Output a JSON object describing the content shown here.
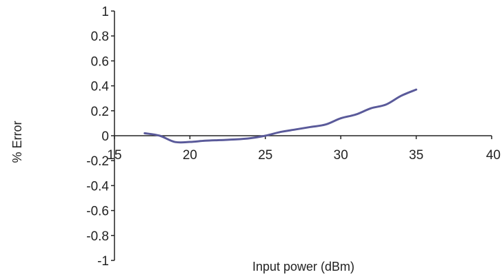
{
  "chart_data": {
    "type": "line",
    "title": "",
    "xlabel": "Input power (dBm)",
    "ylabel": "% Error",
    "xlim": [
      15,
      40
    ],
    "ylim": [
      -1,
      1
    ],
    "x_ticks": [
      15,
      20,
      25,
      30,
      35,
      40
    ],
    "x_tick_labels": [
      "15",
      "20",
      "25",
      "30",
      "35",
      "40"
    ],
    "y_ticks": [
      1,
      0.8,
      0.6,
      0.4,
      0.2,
      0,
      -0.2,
      -0.4,
      -0.6,
      -0.8,
      -1
    ],
    "y_tick_labels": [
      "1",
      "0.8",
      "0.6",
      "0.4",
      "0.2",
      "0",
      "-0.2",
      "-0.4",
      "-0.6",
      "-0.8",
      "-1"
    ],
    "grid": false,
    "legend": "none",
    "series": [
      {
        "color": "#5a5a9a",
        "x": [
          17,
          18,
          19,
          20,
          21,
          22,
          23,
          24,
          25,
          26,
          27,
          28,
          29,
          30,
          31,
          32,
          33,
          34,
          35
        ],
        "y": [
          0.02,
          0.0,
          -0.05,
          -0.05,
          -0.04,
          -0.035,
          -0.03,
          -0.02,
          0.0,
          0.03,
          0.05,
          0.07,
          0.09,
          0.14,
          0.17,
          0.22,
          0.25,
          0.32,
          0.37
        ]
      }
    ]
  }
}
